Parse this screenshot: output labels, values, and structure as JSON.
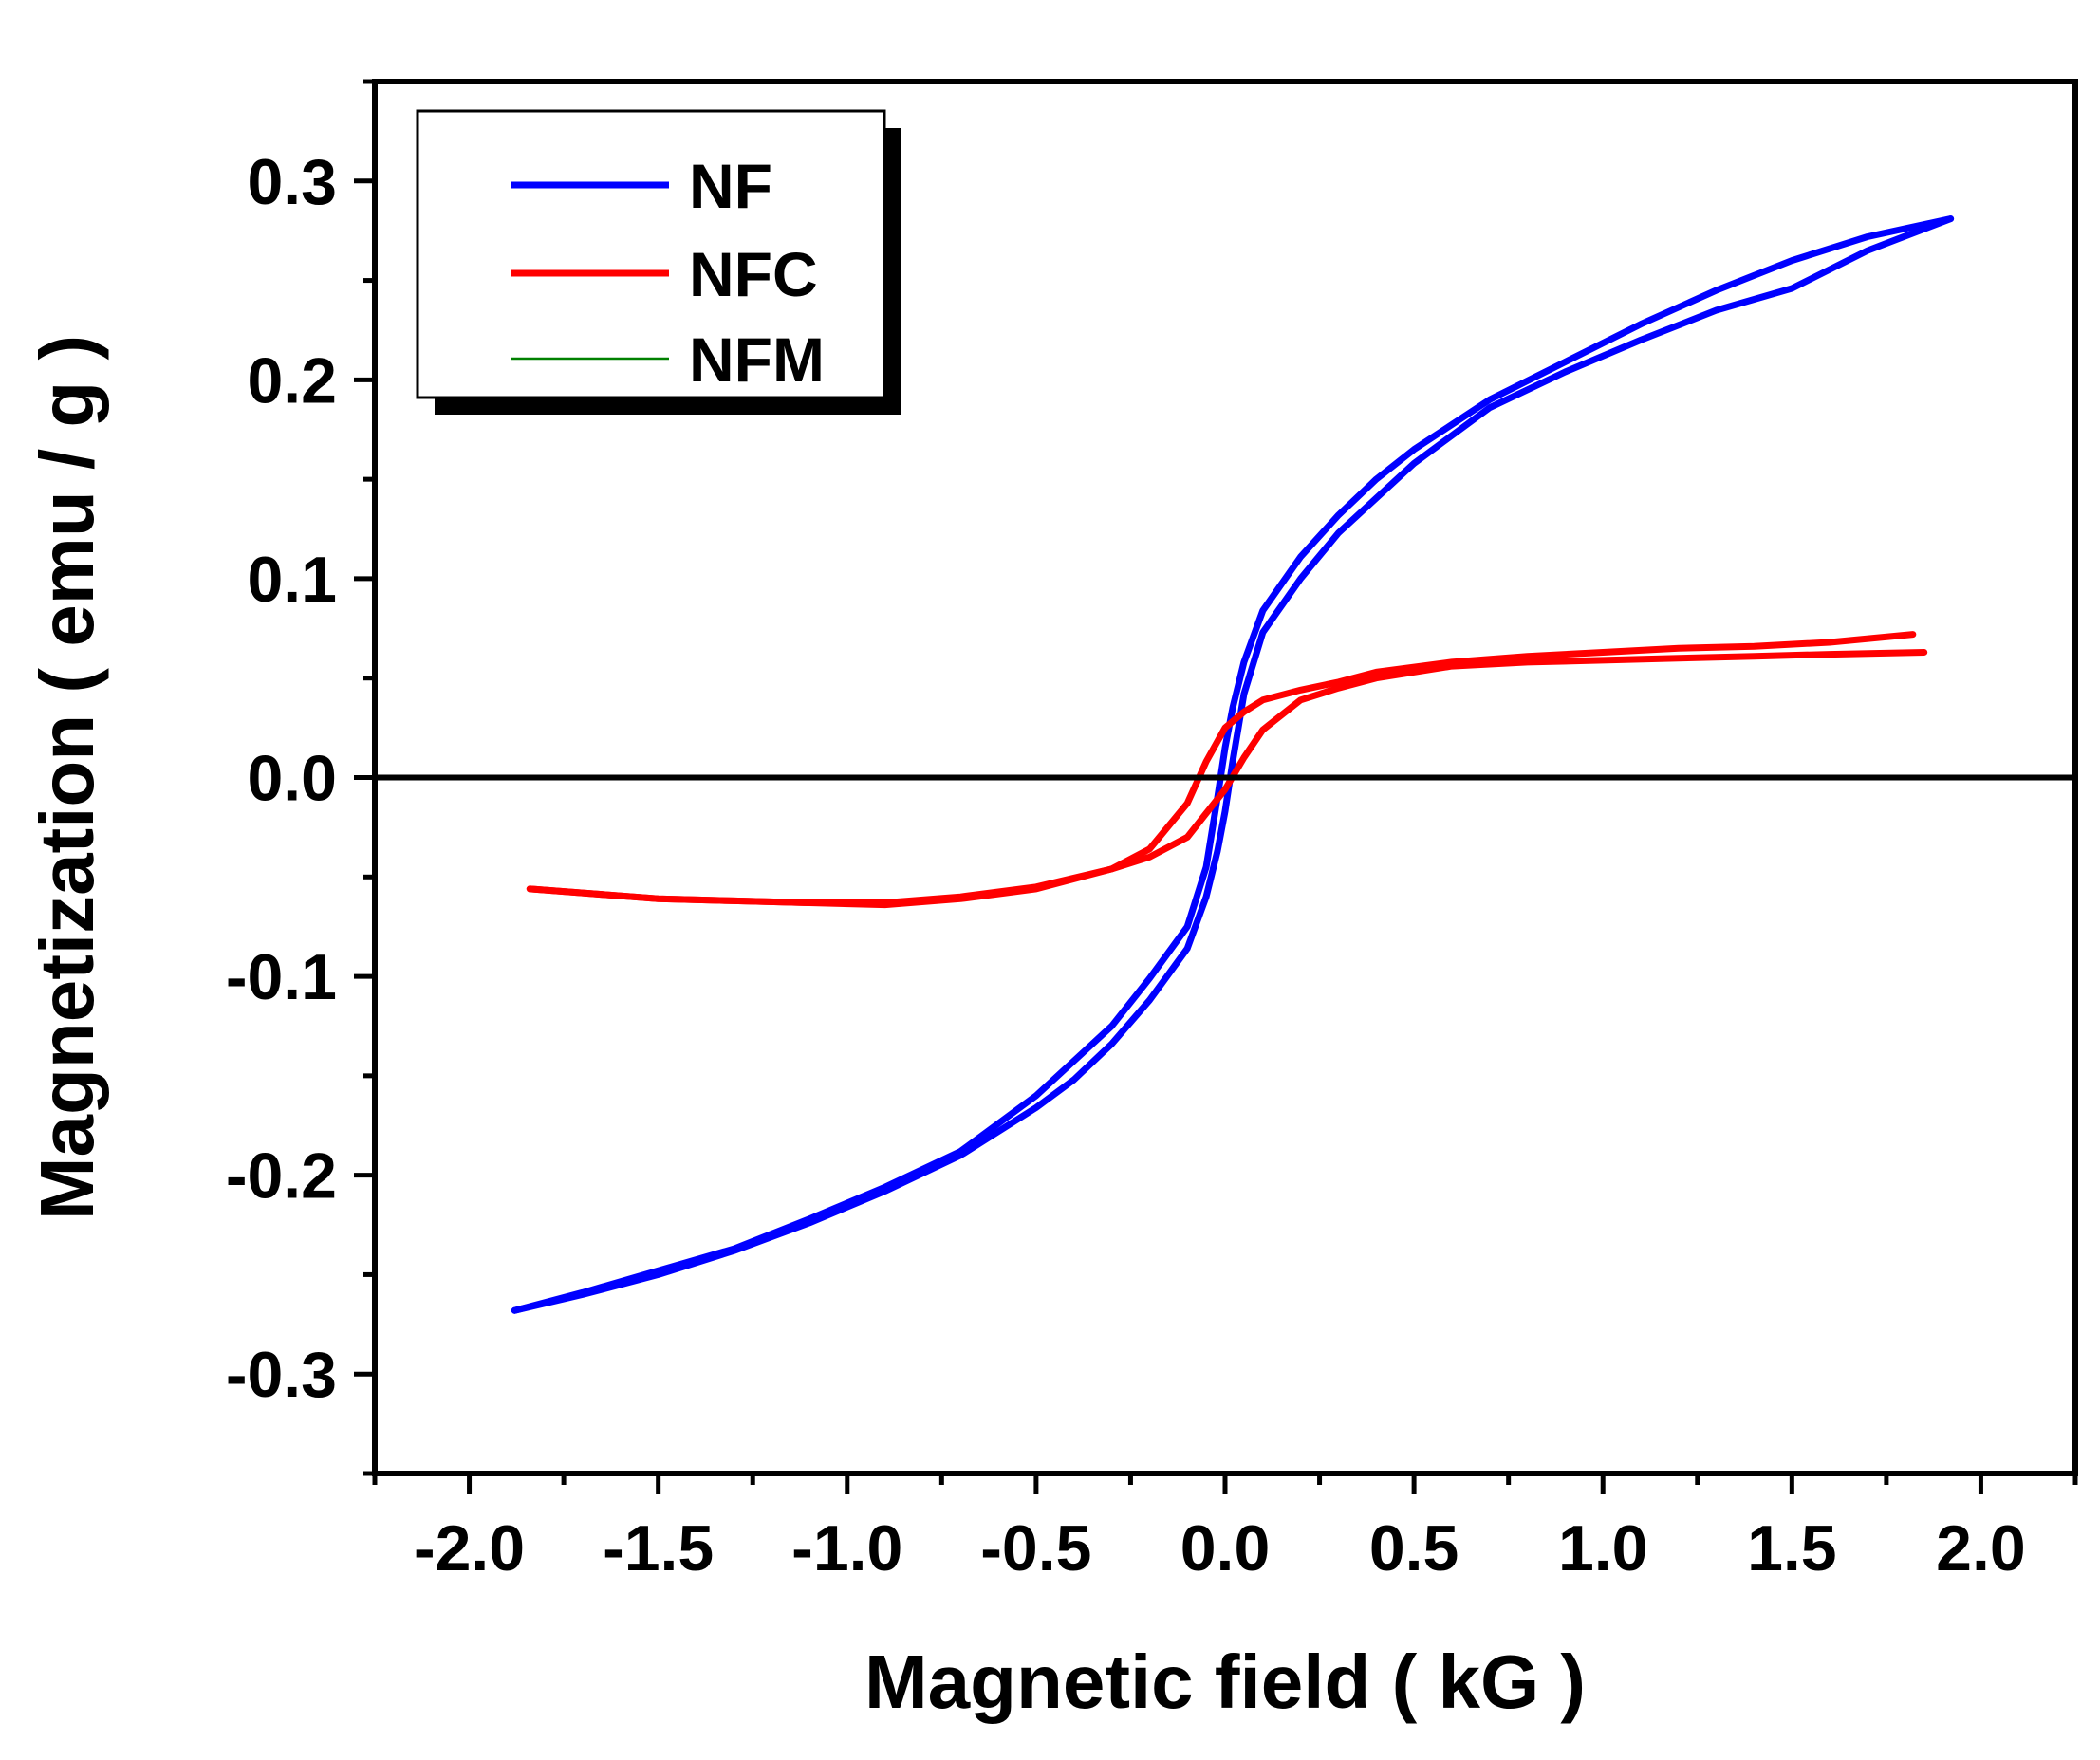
{
  "chart_data": {
    "type": "line",
    "title": "",
    "xlabel": "Magnetic field ( kG )",
    "ylabel": "Magnetization  ( emu / g )",
    "xlim": [
      -2.25,
      2.25
    ],
    "ylim": [
      -0.35,
      0.35
    ],
    "x_ticks": [
      -2.0,
      -1.5,
      -1.0,
      -0.5,
      0.0,
      0.5,
      1.0,
      1.5,
      2.0
    ],
    "x_tick_labels": [
      "-2.0",
      "-1.5",
      "-1.0",
      "-0.5",
      "0.0",
      "0.5",
      "1.0",
      "1.5",
      "2.0"
    ],
    "y_ticks": [
      -0.3,
      -0.2,
      -0.1,
      0.0,
      0.1,
      0.2,
      0.3
    ],
    "y_tick_labels": [
      "-0.3",
      "-0.2",
      "-0.1",
      "0.0",
      "0.1",
      "0.2",
      "0.3"
    ],
    "zero_line": true,
    "grid": false,
    "legend_position": "top-left",
    "series": [
      {
        "name": "NF",
        "color": "#0000ff",
        "descending": {
          "x": [
            1.92,
            1.7,
            1.5,
            1.3,
            1.1,
            0.9,
            0.7,
            0.5,
            0.4,
            0.3,
            0.2,
            0.1,
            0.05,
            0.02,
            0.0,
            -0.02,
            -0.05,
            -0.1,
            -0.2,
            -0.3,
            -0.5,
            -0.7,
            -0.9,
            -1.1,
            -1.3,
            -1.5,
            -1.7,
            -1.88
          ],
          "y": [
            0.281,
            0.272,
            0.26,
            0.245,
            0.228,
            0.209,
            0.19,
            0.165,
            0.15,
            0.132,
            0.111,
            0.084,
            0.058,
            0.035,
            0.015,
            -0.01,
            -0.045,
            -0.075,
            -0.101,
            -0.125,
            -0.16,
            -0.188,
            -0.206,
            -0.222,
            -0.237,
            -0.248,
            -0.259,
            -0.268
          ]
        },
        "ascending": {
          "x": [
            -1.88,
            -1.7,
            -1.5,
            -1.3,
            -1.1,
            -0.9,
            -0.7,
            -0.5,
            -0.4,
            -0.3,
            -0.2,
            -0.1,
            -0.05,
            -0.02,
            0.0,
            0.02,
            0.05,
            0.1,
            0.2,
            0.3,
            0.5,
            0.7,
            0.9,
            1.1,
            1.3,
            1.5,
            1.7,
            1.92
          ],
          "y": [
            -0.268,
            -0.26,
            -0.25,
            -0.238,
            -0.224,
            -0.208,
            -0.19,
            -0.166,
            -0.152,
            -0.134,
            -0.112,
            -0.086,
            -0.06,
            -0.037,
            -0.017,
            0.008,
            0.042,
            0.073,
            0.1,
            0.123,
            0.158,
            0.186,
            0.204,
            0.22,
            0.235,
            0.246,
            0.265,
            0.281
          ]
        }
      },
      {
        "name": "NFC",
        "color": "#ff0000",
        "descending": {
          "x": [
            1.82,
            1.6,
            1.4,
            1.2,
            1.0,
            0.8,
            0.6,
            0.4,
            0.3,
            0.2,
            0.1,
            0.05,
            0.0,
            -0.05,
            -0.1,
            -0.2,
            -0.3,
            -0.5,
            -0.7,
            -0.9,
            -1.1,
            -1.3,
            -1.5,
            -1.7,
            -1.84
          ],
          "y": [
            0.072,
            0.068,
            0.066,
            0.065,
            0.063,
            0.061,
            0.058,
            0.053,
            0.048,
            0.044,
            0.039,
            0.033,
            0.025,
            0.008,
            -0.013,
            -0.036,
            -0.046,
            -0.056,
            -0.061,
            -0.064,
            -0.063,
            -0.062,
            -0.061,
            -0.058,
            -0.056
          ]
        },
        "ascending": {
          "x": [
            -1.84,
            -1.7,
            -1.5,
            -1.3,
            -1.1,
            -0.9,
            -0.7,
            -0.5,
            -0.3,
            -0.2,
            -0.1,
            -0.05,
            0.0,
            0.05,
            0.1,
            0.2,
            0.3,
            0.4,
            0.6,
            0.8,
            1.0,
            1.2,
            1.4,
            1.6,
            1.85
          ],
          "y": [
            -0.056,
            -0.058,
            -0.061,
            -0.062,
            -0.063,
            -0.063,
            -0.06,
            -0.055,
            -0.046,
            -0.04,
            -0.03,
            -0.018,
            -0.006,
            0.01,
            0.024,
            0.039,
            0.045,
            0.05,
            0.056,
            0.058,
            0.059,
            0.06,
            0.061,
            0.062,
            0.063
          ]
        }
      },
      {
        "name": "NFM",
        "color": "#008000"
      }
    ]
  }
}
